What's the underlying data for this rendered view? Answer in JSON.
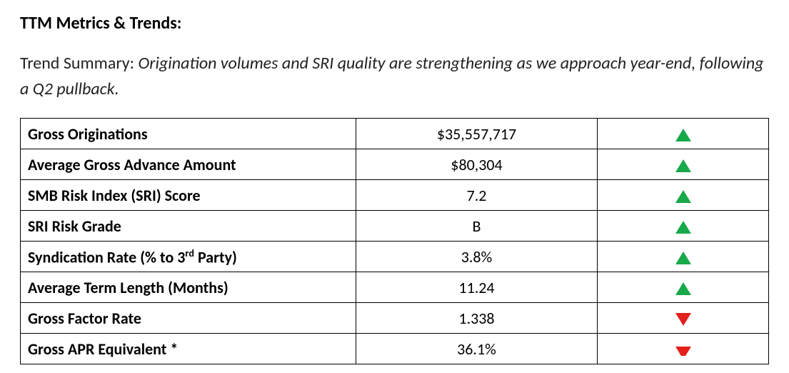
{
  "title": "TTM Metrics & Trends:",
  "summary_lead": "Trend Summary: ",
  "summary_body": "Origination volumes and SRI quality are strengthening as we approach year-end, following a Q2 pullback.",
  "colors": {
    "up": "#18a94a",
    "down": "#e3201b",
    "text": "#000000",
    "border": "#000000",
    "background": "#ffffff"
  },
  "triangle": {
    "width": 22,
    "height": 18
  },
  "rows": [
    {
      "metric": "Gross Originations",
      "metric_html": "Gross Originations",
      "value": "$35,557,717",
      "trend": "up"
    },
    {
      "metric": "Average Gross Advance Amount",
      "metric_html": "Average Gross Advance Amount",
      "value": "$80,304",
      "trend": "up"
    },
    {
      "metric": "SMB Risk Index (SRI) Score",
      "metric_html": "SMB Risk Index (SRI) Score",
      "value": "7.2",
      "trend": "up"
    },
    {
      "metric": "SRI Risk Grade",
      "metric_html": "SRI Risk Grade",
      "value": "B",
      "trend": "up"
    },
    {
      "metric": "Syndication Rate (% to 3rd Party)",
      "metric_html": "Syndication Rate (% to 3<sup>rd</sup> Party)",
      "value": "3.8%",
      "trend": "up"
    },
    {
      "metric": "Average Term Length (Months)",
      "metric_html": "Average Term Length (Months)",
      "value": "11.24",
      "trend": "up"
    },
    {
      "metric": "Gross Factor Rate",
      "metric_html": "Gross Factor Rate",
      "value": "1.338",
      "trend": "down"
    },
    {
      "metric": "Gross APR Equivalent *",
      "metric_html": "Gross APR Equivalent *",
      "value": "36.1%",
      "trend": "down",
      "cutoff": true
    }
  ]
}
